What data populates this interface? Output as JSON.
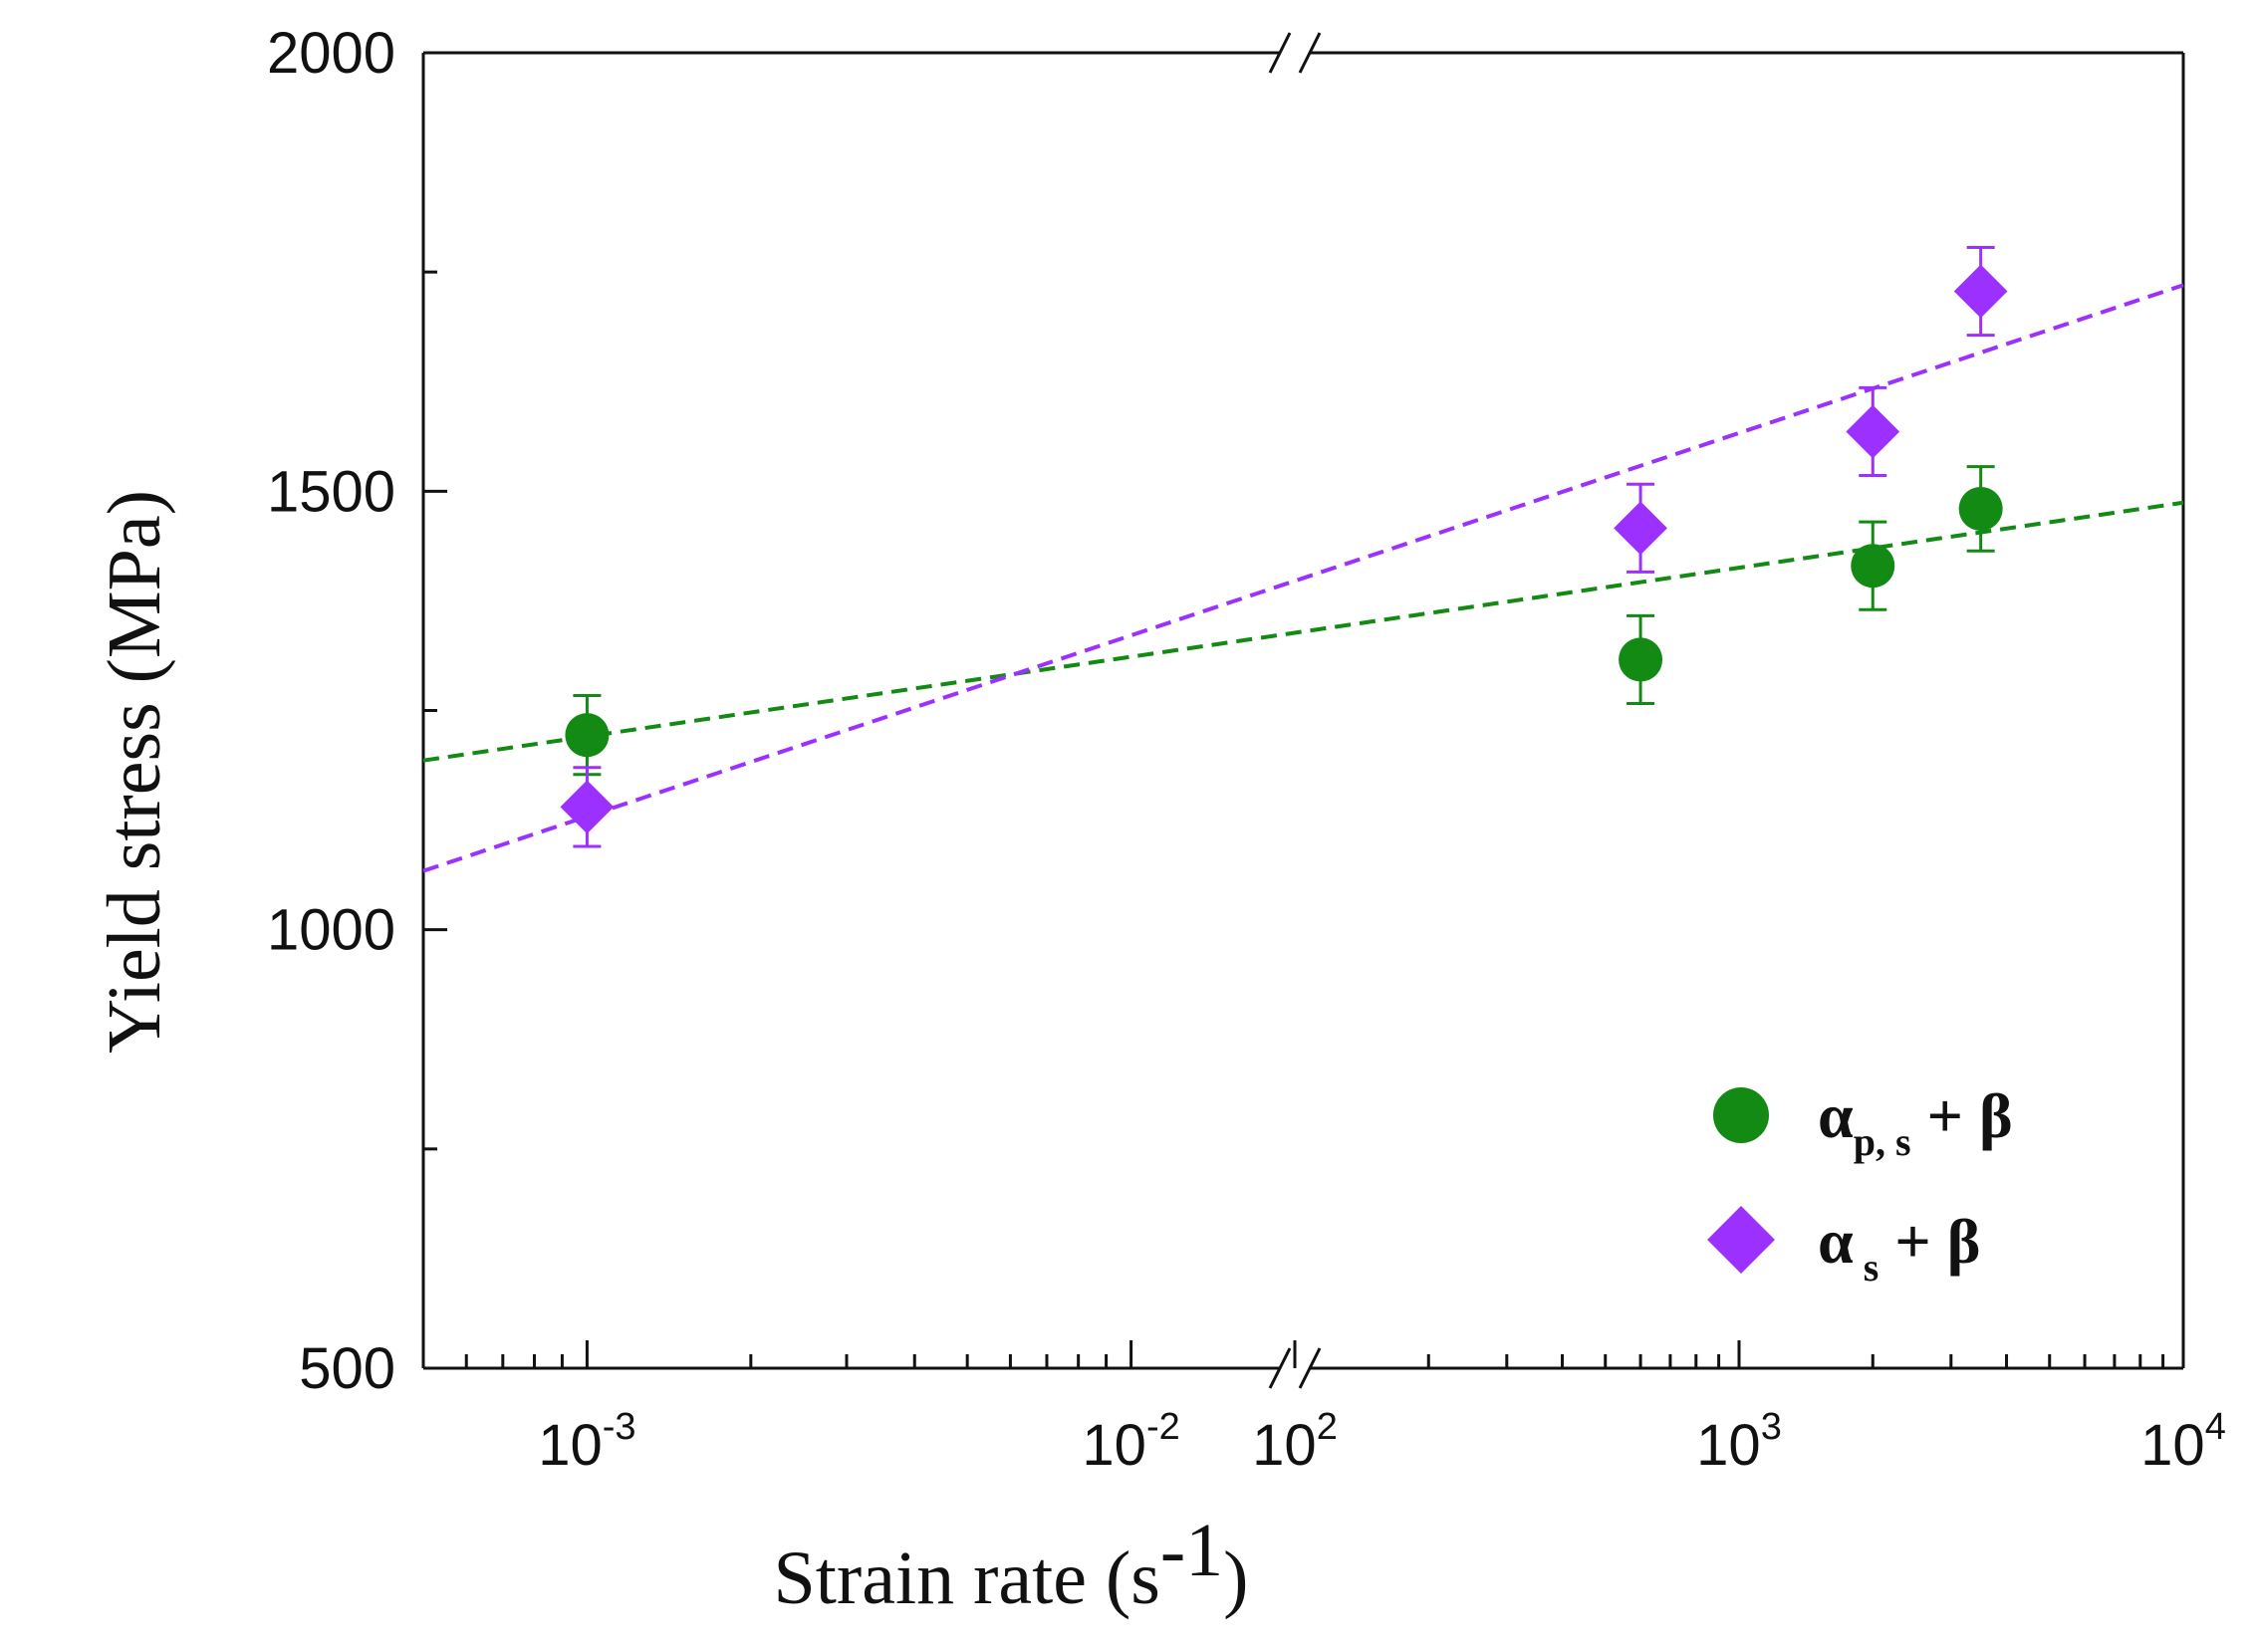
{
  "chart_data": {
    "type": "scatter",
    "xlabel": "Strain rate (s",
    "xlabel_sup": "-1",
    "xlabel_tail": ")",
    "ylabel": "Yield stress (MPa)",
    "x_scale": "log, broken axis",
    "x_segments": [
      {
        "range": [
          0.0005,
          0.02
        ],
        "ticks": [
          {
            "base": "10",
            "exp": "-3",
            "value": 0.001
          },
          {
            "base": "10",
            "exp": "-2",
            "value": 0.01
          }
        ]
      },
      {
        "range": [
          100,
          10000
        ],
        "ticks": [
          {
            "base": "10",
            "exp": "2",
            "value": 100
          },
          {
            "base": "10",
            "exp": "3",
            "value": 1000
          },
          {
            "base": "10",
            "exp": "4",
            "value": 10000
          }
        ]
      }
    ],
    "ylim": [
      500,
      2000
    ],
    "y_ticks": [
      {
        "label": "500",
        "value": 500
      },
      {
        "label": "1000",
        "value": 1000
      },
      {
        "label": "1500",
        "value": 1500
      },
      {
        "label": "2000",
        "value": 2000
      }
    ],
    "grid": false,
    "legend_position": "bottom-right",
    "series": [
      {
        "legend_main": "α",
        "legend_sub": "p, s",
        "legend_tail": " + β",
        "marker": "circle",
        "color": "#138a13",
        "points": [
          {
            "x": 0.001,
            "y": 1222,
            "err": 45
          },
          {
            "x": 600,
            "y": 1308,
            "err": 50
          },
          {
            "x": 2000,
            "y": 1415,
            "err": 50
          },
          {
            "x": 3500,
            "y": 1480,
            "err": 48
          }
        ],
        "fit": [
          {
            "x": 0.0005,
            "y": 1193
          },
          {
            "x": 10000,
            "y": 1487
          }
        ]
      },
      {
        "legend_main": "α",
        "legend_sub": " s",
        "legend_tail": " + β",
        "marker": "diamond",
        "color": "#9b30ff",
        "points": [
          {
            "x": 0.001,
            "y": 1140,
            "err": 45
          },
          {
            "x": 600,
            "y": 1458,
            "err": 50
          },
          {
            "x": 2000,
            "y": 1568,
            "err": 50
          },
          {
            "x": 3500,
            "y": 1728,
            "err": 50
          }
        ],
        "fit": [
          {
            "x": 0.0005,
            "y": 1067
          },
          {
            "x": 10000,
            "y": 1735
          }
        ]
      }
    ]
  }
}
